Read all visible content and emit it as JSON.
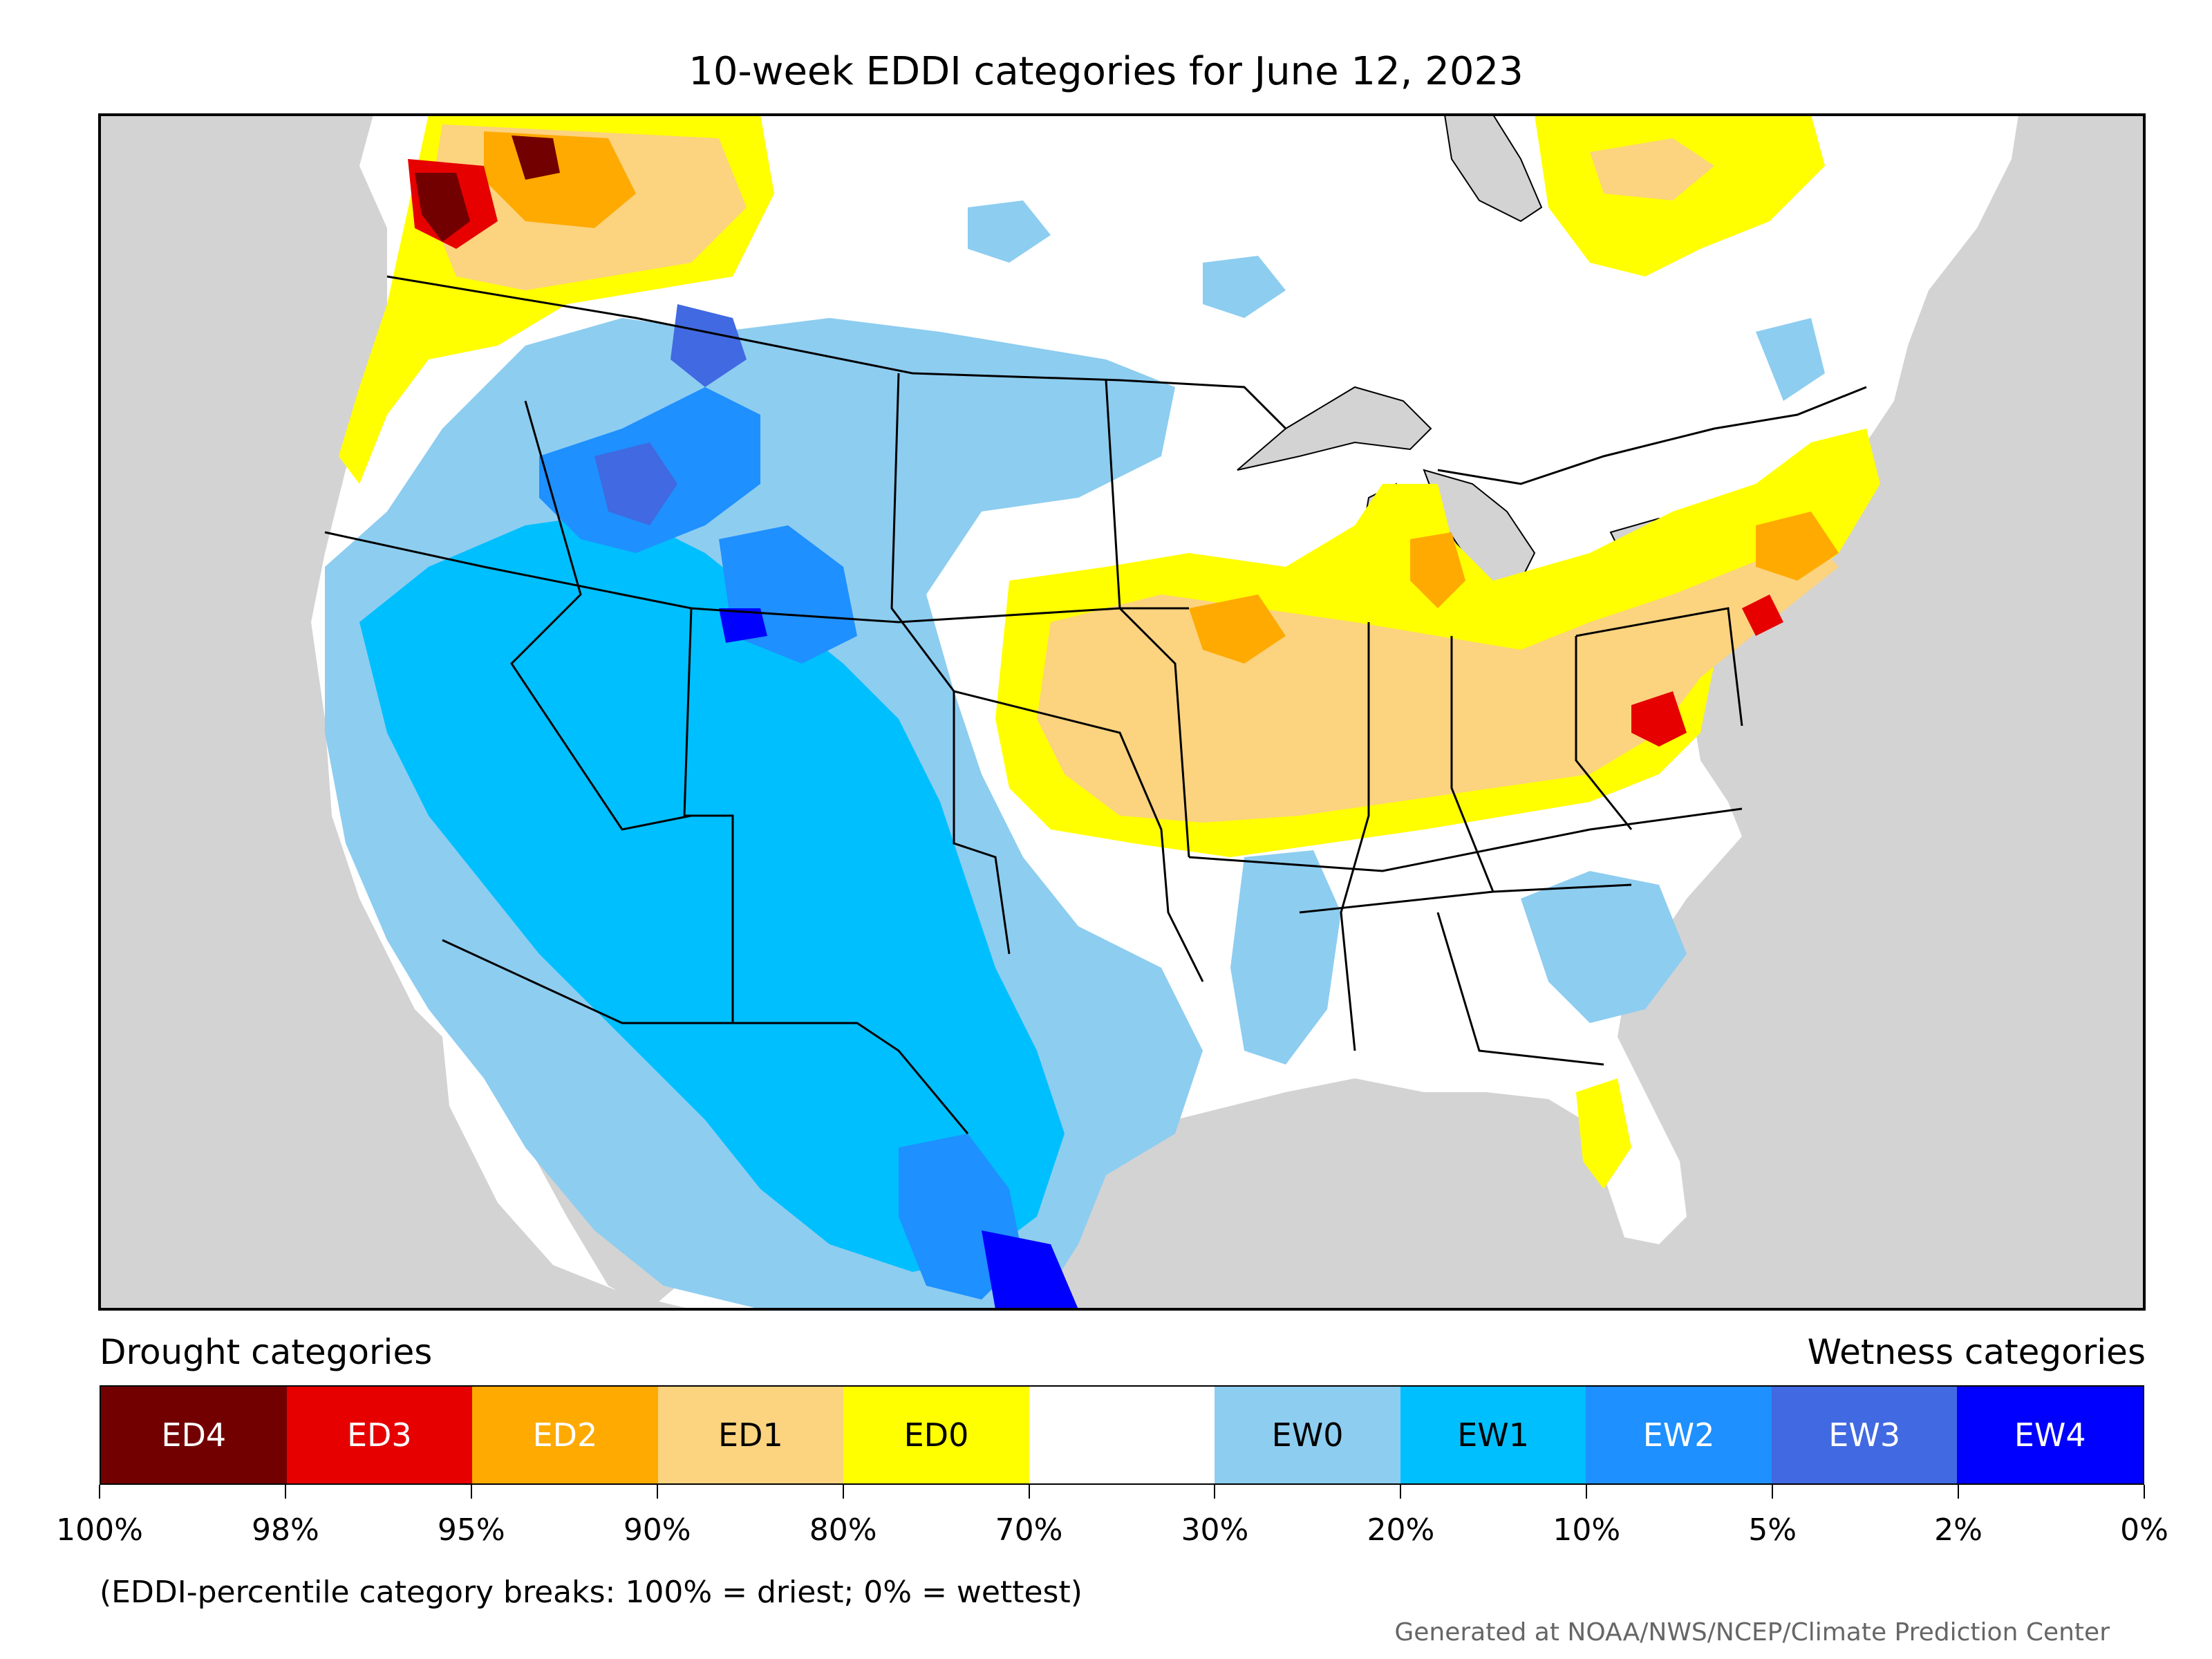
{
  "title": "10-week EDDI categories for June 12, 2023",
  "legend": {
    "drought_heading": "Drought categories",
    "wetness_heading": "Wetness categories",
    "categories": [
      {
        "label": "ED4",
        "color": "#730000",
        "text_color": "#ffffff"
      },
      {
        "label": "ED3",
        "color": "#e60000",
        "text_color": "#ffffff"
      },
      {
        "label": "ED2",
        "color": "#ffaa00",
        "text_color": "#ffffff"
      },
      {
        "label": "ED1",
        "color": "#fcd37f",
        "text_color": "#000000"
      },
      {
        "label": "ED0",
        "color": "#ffff00",
        "text_color": "#000000"
      },
      {
        "label": "",
        "color": "#ffffff",
        "text_color": "#000000"
      },
      {
        "label": "EW0",
        "color": "#8dcdf0",
        "text_color": "#000000"
      },
      {
        "label": "EW1",
        "color": "#00bfff",
        "text_color": "#000000"
      },
      {
        "label": "EW2",
        "color": "#1e90ff",
        "text_color": "#ffffff"
      },
      {
        "label": "EW3",
        "color": "#4169e1",
        "text_color": "#ffffff"
      },
      {
        "label": "EW4",
        "color": "#0000ff",
        "text_color": "#ffffff"
      }
    ],
    "breaks": [
      "100%",
      "98%",
      "95%",
      "90%",
      "80%",
      "70%",
      "30%",
      "20%",
      "10%",
      "5%",
      "2%",
      "0%"
    ]
  },
  "footnote": "(EDDI-percentile category breaks: 100% = driest; 0% = wettest)",
  "credit": "Generated at NOAA/NWS/NCEP/Climate Prediction Center",
  "colors": {
    "ocean": "#d3d3d3",
    "land": "#ffffff",
    "boundary": "#000000"
  }
}
